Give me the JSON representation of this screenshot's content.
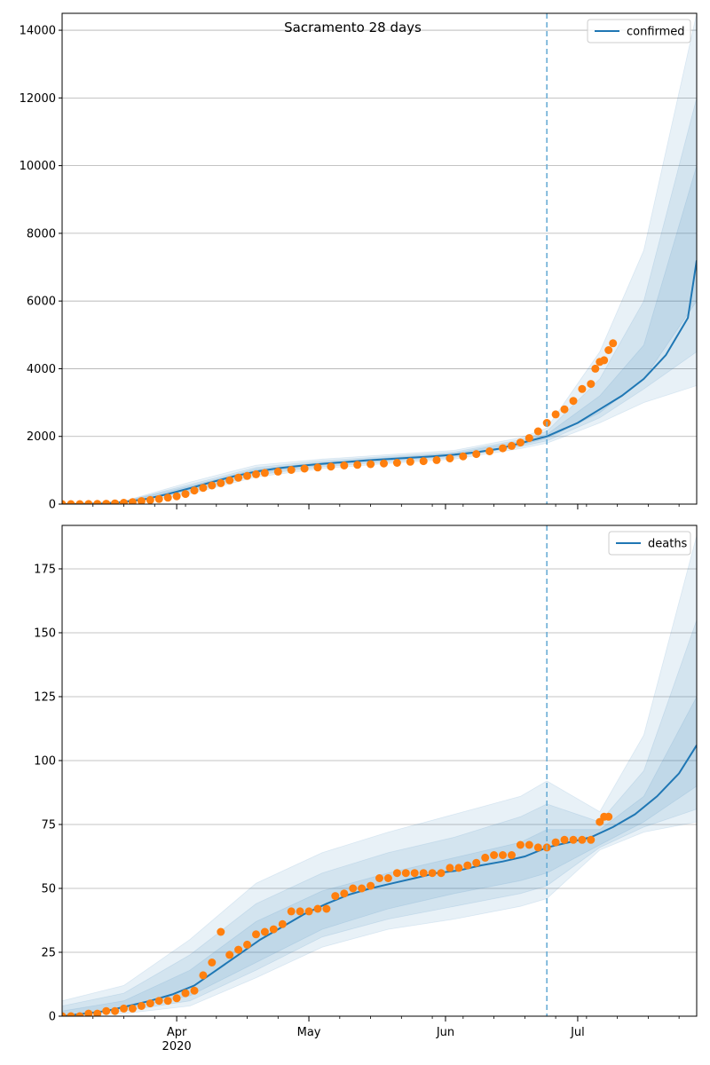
{
  "chart_data": [
    {
      "type": "line",
      "title": "Sacramento 28 days",
      "xlabel": "",
      "ylabel": "",
      "x_range": [
        "2020-03-06",
        "2020-07-28"
      ],
      "ylim": [
        0,
        14500
      ],
      "yticks": [
        0,
        2000,
        4000,
        6000,
        8000,
        10000,
        12000,
        14000
      ],
      "ytick_labels": [
        "0",
        "2000",
        "4000",
        "6000",
        "8000",
        "10000",
        "12000",
        "14000"
      ],
      "grid": "horizontal",
      "legend_position": "upper right",
      "cutoff_date": "2020-06-24",
      "series": [
        {
          "name": "confirmed",
          "kind": "model-median-line",
          "color": "#1f77b4",
          "points": [
            [
              "2020-03-06",
              0
            ],
            [
              "2020-03-15",
              10
            ],
            [
              "2020-03-20",
              60
            ],
            [
              "2020-03-25",
              150
            ],
            [
              "2020-03-30",
              300
            ],
            [
              "2020-04-04",
              470
            ],
            [
              "2020-04-09",
              650
            ],
            [
              "2020-04-14",
              820
            ],
            [
              "2020-04-19",
              960
            ],
            [
              "2020-04-24",
              1060
            ],
            [
              "2020-04-29",
              1130
            ],
            [
              "2020-05-04",
              1190
            ],
            [
              "2020-05-09",
              1240
            ],
            [
              "2020-05-14",
              1290
            ],
            [
              "2020-05-19",
              1330
            ],
            [
              "2020-05-24",
              1370
            ],
            [
              "2020-05-29",
              1410
            ],
            [
              "2020-06-03",
              1460
            ],
            [
              "2020-06-08",
              1530
            ],
            [
              "2020-06-13",
              1630
            ],
            [
              "2020-06-18",
              1800
            ],
            [
              "2020-06-24",
              2000
            ],
            [
              "2020-07-01",
              2400
            ],
            [
              "2020-07-06",
              2800
            ],
            [
              "2020-07-11",
              3200
            ],
            [
              "2020-07-16",
              3700
            ],
            [
              "2020-07-21",
              4400
            ],
            [
              "2020-07-26",
              5500
            ],
            [
              "2020-07-28",
              7200
            ]
          ]
        },
        {
          "name": "",
          "kind": "observed-points",
          "color": "#ff7f0e",
          "points": [
            [
              "2020-03-06",
              0
            ],
            [
              "2020-03-08",
              0
            ],
            [
              "2020-03-10",
              0
            ],
            [
              "2020-03-12",
              2
            ],
            [
              "2020-03-14",
              5
            ],
            [
              "2020-03-16",
              10
            ],
            [
              "2020-03-18",
              20
            ],
            [
              "2020-03-20",
              40
            ],
            [
              "2020-03-22",
              60
            ],
            [
              "2020-03-24",
              90
            ],
            [
              "2020-03-26",
              120
            ],
            [
              "2020-03-28",
              150
            ],
            [
              "2020-03-30",
              190
            ],
            [
              "2020-04-01",
              230
            ],
            [
              "2020-04-03",
              300
            ],
            [
              "2020-04-05",
              400
            ],
            [
              "2020-04-07",
              480
            ],
            [
              "2020-04-09",
              550
            ],
            [
              "2020-04-11",
              620
            ],
            [
              "2020-04-13",
              700
            ],
            [
              "2020-04-15",
              780
            ],
            [
              "2020-04-17",
              830
            ],
            [
              "2020-04-19",
              880
            ],
            [
              "2020-04-21",
              920
            ],
            [
              "2020-04-24",
              960
            ],
            [
              "2020-04-27",
              1010
            ],
            [
              "2020-04-30",
              1050
            ],
            [
              "2020-05-03",
              1080
            ],
            [
              "2020-05-06",
              1110
            ],
            [
              "2020-05-09",
              1140
            ],
            [
              "2020-05-12",
              1160
            ],
            [
              "2020-05-15",
              1180
            ],
            [
              "2020-05-18",
              1200
            ],
            [
              "2020-05-21",
              1220
            ],
            [
              "2020-05-24",
              1250
            ],
            [
              "2020-05-27",
              1270
            ],
            [
              "2020-05-30",
              1300
            ],
            [
              "2020-06-02",
              1350
            ],
            [
              "2020-06-05",
              1410
            ],
            [
              "2020-06-08",
              1480
            ],
            [
              "2020-06-11",
              1560
            ],
            [
              "2020-06-14",
              1650
            ],
            [
              "2020-06-16",
              1720
            ],
            [
              "2020-06-18",
              1820
            ],
            [
              "2020-06-20",
              1950
            ],
            [
              "2020-06-22",
              2150
            ],
            [
              "2020-06-24",
              2400
            ],
            [
              "2020-06-26",
              2650
            ],
            [
              "2020-06-28",
              2800
            ],
            [
              "2020-06-30",
              3050
            ],
            [
              "2020-07-02",
              3400
            ],
            [
              "2020-07-04",
              3550
            ],
            [
              "2020-07-05",
              4000
            ],
            [
              "2020-07-06",
              4200
            ],
            [
              "2020-07-07",
              4250
            ],
            [
              "2020-07-08",
              4550
            ],
            [
              "2020-07-09",
              4750
            ]
          ]
        }
      ],
      "bands": {
        "color": "#1f77b4",
        "dates": [
          "2020-03-06",
          "2020-03-20",
          "2020-04-04",
          "2020-04-19",
          "2020-05-04",
          "2020-05-19",
          "2020-06-03",
          "2020-06-18",
          "2020-06-24",
          "2020-07-06",
          "2020-07-16",
          "2020-07-28"
        ],
        "levels": [
          {
            "lower": [
              0,
              30,
              300,
              800,
              1050,
              1200,
              1330,
              1640,
              1800,
              2400,
              3000,
              3500
            ],
            "upper": [
              0,
              90,
              650,
              1150,
              1330,
              1460,
              1590,
              1960,
              2250,
              4500,
              7500,
              14500
            ]
          },
          {
            "lower": [
              0,
              40,
              360,
              860,
              1100,
              1250,
              1380,
              1700,
              1870,
              2550,
              3400,
              4500
            ],
            "upper": [
              0,
              80,
              580,
              1080,
              1280,
              1410,
              1540,
              1900,
              2150,
              3700,
              6000,
              12000
            ]
          },
          {
            "lower": [
              0,
              50,
              410,
              910,
              1150,
              1290,
              1420,
              1750,
              1940,
              2700,
              3700,
              6000
            ],
            "upper": [
              0,
              70,
              530,
              1030,
              1230,
              1370,
              1500,
              1850,
              2060,
              3200,
              4700,
              10000
            ]
          }
        ]
      }
    },
    {
      "type": "line",
      "title": "",
      "xlabel": "",
      "ylabel": "",
      "x_range": [
        "2020-03-06",
        "2020-07-28"
      ],
      "ylim": [
        0,
        192
      ],
      "yticks": [
        0,
        25,
        50,
        75,
        100,
        125,
        150,
        175
      ],
      "ytick_labels": [
        "0",
        "25",
        "50",
        "75",
        "100",
        "125",
        "150",
        "175"
      ],
      "grid": "horizontal",
      "legend_position": "upper right",
      "cutoff_date": "2020-06-24",
      "xtick_labels": [
        {
          "date": "2020-04-01",
          "label": "Apr",
          "sublabel": "2020"
        },
        {
          "date": "2020-05-01",
          "label": "May",
          "sublabel": ""
        },
        {
          "date": "2020-06-01",
          "label": "Jun",
          "sublabel": ""
        },
        {
          "date": "2020-07-01",
          "label": "Jul",
          "sublabel": ""
        }
      ],
      "series": [
        {
          "name": "deaths",
          "kind": "model-median-line",
          "color": "#1f77b4",
          "points": [
            [
              "2020-03-06",
              0
            ],
            [
              "2020-03-11",
              1
            ],
            [
              "2020-03-16",
              2
            ],
            [
              "2020-03-21",
              4
            ],
            [
              "2020-03-26",
              6
            ],
            [
              "2020-03-31",
              8.5
            ],
            [
              "2020-04-05",
              12
            ],
            [
              "2020-04-10",
              18
            ],
            [
              "2020-04-15",
              24
            ],
            [
              "2020-04-20",
              30
            ],
            [
              "2020-04-25",
              35
            ],
            [
              "2020-04-30",
              40
            ],
            [
              "2020-05-05",
              44
            ],
            [
              "2020-05-10",
              47.5
            ],
            [
              "2020-05-15",
              50
            ],
            [
              "2020-05-20",
              52
            ],
            [
              "2020-05-25",
              54
            ],
            [
              "2020-05-30",
              56
            ],
            [
              "2020-06-04",
              57
            ],
            [
              "2020-06-09",
              59
            ],
            [
              "2020-06-14",
              60.5
            ],
            [
              "2020-06-19",
              62.5
            ],
            [
              "2020-06-24",
              66
            ],
            [
              "2020-06-29",
              68
            ],
            [
              "2020-07-04",
              70
            ],
            [
              "2020-07-09",
              74
            ],
            [
              "2020-07-14",
              79
            ],
            [
              "2020-07-19",
              86
            ],
            [
              "2020-07-24",
              95
            ],
            [
              "2020-07-28",
              106
            ]
          ]
        },
        {
          "name": "",
          "kind": "observed-points",
          "color": "#ff7f0e",
          "points": [
            [
              "2020-03-06",
              0
            ],
            [
              "2020-03-08",
              0
            ],
            [
              "2020-03-10",
              0
            ],
            [
              "2020-03-12",
              1
            ],
            [
              "2020-03-14",
              1
            ],
            [
              "2020-03-16",
              2
            ],
            [
              "2020-03-18",
              2
            ],
            [
              "2020-03-20",
              3
            ],
            [
              "2020-03-22",
              3
            ],
            [
              "2020-03-24",
              4
            ],
            [
              "2020-03-26",
              5
            ],
            [
              "2020-03-28",
              6
            ],
            [
              "2020-03-30",
              6
            ],
            [
              "2020-04-01",
              7
            ],
            [
              "2020-04-03",
              9
            ],
            [
              "2020-04-05",
              10
            ],
            [
              "2020-04-07",
              16
            ],
            [
              "2020-04-09",
              21
            ],
            [
              "2020-04-11",
              33
            ],
            [
              "2020-04-13",
              24
            ],
            [
              "2020-04-15",
              26
            ],
            [
              "2020-04-17",
              28
            ],
            [
              "2020-04-19",
              32
            ],
            [
              "2020-04-21",
              33
            ],
            [
              "2020-04-23",
              34
            ],
            [
              "2020-04-25",
              36
            ],
            [
              "2020-04-27",
              41
            ],
            [
              "2020-04-29",
              41
            ],
            [
              "2020-05-01",
              41
            ],
            [
              "2020-05-03",
              42
            ],
            [
              "2020-05-05",
              42
            ],
            [
              "2020-05-07",
              47
            ],
            [
              "2020-05-09",
              48
            ],
            [
              "2020-05-11",
              50
            ],
            [
              "2020-05-13",
              50
            ],
            [
              "2020-05-15",
              51
            ],
            [
              "2020-05-17",
              54
            ],
            [
              "2020-05-19",
              54
            ],
            [
              "2020-05-21",
              56
            ],
            [
              "2020-05-23",
              56
            ],
            [
              "2020-05-25",
              56
            ],
            [
              "2020-05-27",
              56
            ],
            [
              "2020-05-29",
              56
            ],
            [
              "2020-05-31",
              56
            ],
            [
              "2020-06-02",
              58
            ],
            [
              "2020-06-04",
              58
            ],
            [
              "2020-06-06",
              59
            ],
            [
              "2020-06-08",
              60
            ],
            [
              "2020-06-10",
              62
            ],
            [
              "2020-06-12",
              63
            ],
            [
              "2020-06-14",
              63
            ],
            [
              "2020-06-16",
              63
            ],
            [
              "2020-06-18",
              67
            ],
            [
              "2020-06-20",
              67
            ],
            [
              "2020-06-22",
              66
            ],
            [
              "2020-06-24",
              66
            ],
            [
              "2020-06-26",
              68
            ],
            [
              "2020-06-28",
              69
            ],
            [
              "2020-06-30",
              69
            ],
            [
              "2020-07-02",
              69
            ],
            [
              "2020-07-04",
              69
            ],
            [
              "2020-07-06",
              76
            ],
            [
              "2020-07-07",
              78
            ],
            [
              "2020-07-08",
              78
            ]
          ]
        }
      ],
      "bands": {
        "color": "#1f77b4",
        "dates": [
          "2020-03-06",
          "2020-03-20",
          "2020-04-04",
          "2020-04-19",
          "2020-05-04",
          "2020-05-19",
          "2020-06-03",
          "2020-06-18",
          "2020-06-24",
          "2020-07-06",
          "2020-07-16",
          "2020-07-28"
        ],
        "levels": [
          {
            "lower": [
              0,
              1,
              4,
              15,
              27,
              34,
              38,
              43,
              46,
              65,
              72,
              76
            ],
            "upper": [
              6,
              12,
              30,
              52,
              64,
              72,
              79,
              86,
              92,
              80,
              110,
              188
            ]
          },
          {
            "lower": [
              0,
              2,
              6,
              18,
              31,
              38,
              43,
              48,
              51,
              66,
              74,
              81
            ],
            "upper": [
              4,
              9,
              24,
              44,
              56,
              64,
              70,
              78,
              83,
              76,
              96,
              155
            ]
          },
          {
            "lower": [
              0,
              3,
              8,
              21,
              34,
              42,
              48,
              53,
              56,
              67,
              76,
              90
            ],
            "upper": [
              2,
              6,
              18,
              37,
              49,
              56,
              62,
              68,
              73,
              73,
              86,
              125
            ]
          }
        ]
      }
    }
  ]
}
